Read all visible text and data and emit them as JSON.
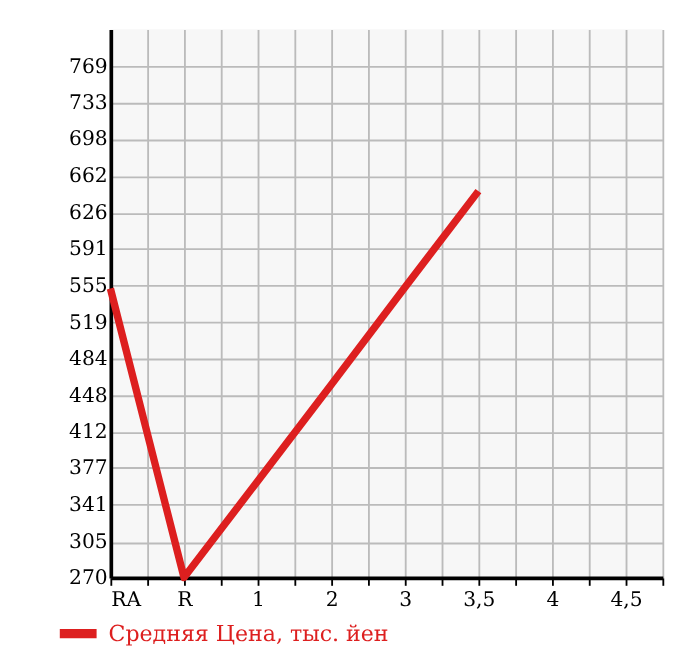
{
  "chart_data": {
    "type": "line",
    "categories": [
      "RA",
      "R",
      "1",
      "2",
      "3",
      "3,5",
      "4",
      "4,5"
    ],
    "series": [
      {
        "name": "Средняя Цена, тыс. йен",
        "color": "#dd1f1f",
        "values": [
          552,
          270,
          364,
          458,
          553,
          647,
          null,
          null
        ]
      }
    ],
    "ylim": [
      270,
      805
    ],
    "yticks": [
      270,
      305,
      341,
      377,
      412,
      448,
      484,
      519,
      555,
      591,
      626,
      662,
      698,
      733,
      769
    ],
    "grid": true,
    "legend": "bottom left",
    "marker": "none",
    "line_style": "solid"
  }
}
